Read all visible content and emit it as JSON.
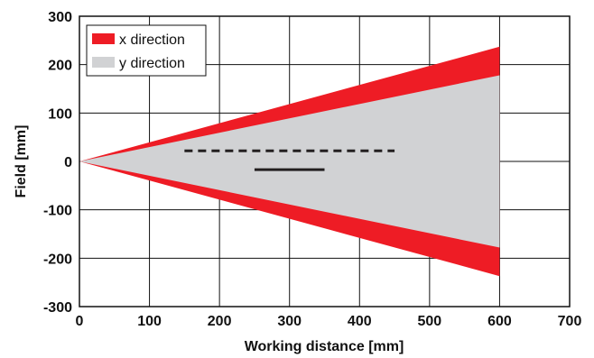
{
  "chart_data": {
    "type": "area",
    "xlabel": "Working distance [mm]",
    "ylabel": "Field [mm]",
    "xlim": [
      0,
      700
    ],
    "ylim": [
      -300,
      300
    ],
    "x_ticks": [
      0,
      100,
      200,
      300,
      400,
      500,
      600,
      700
    ],
    "y_ticks": [
      300,
      200,
      100,
      0,
      -100,
      -200,
      -300
    ],
    "grid": true,
    "legend_position": "top-left",
    "series": [
      {
        "name": "x direction",
        "color": "#ee1c25",
        "x": [
          0,
          600
        ],
        "upper": [
          0,
          237
        ],
        "lower": [
          0,
          -237
        ]
      },
      {
        "name": "y direction",
        "color": "#d1d2d4",
        "x": [
          0,
          600
        ],
        "upper": [
          0,
          178
        ],
        "lower": [
          0,
          -178
        ]
      }
    ],
    "annotations": [
      {
        "style": "dashed",
        "color": "#231f20",
        "x": [
          150,
          450
        ],
        "y": 22
      },
      {
        "style": "solid",
        "color": "#231f20",
        "x": [
          250,
          350
        ],
        "y": -17
      }
    ]
  }
}
